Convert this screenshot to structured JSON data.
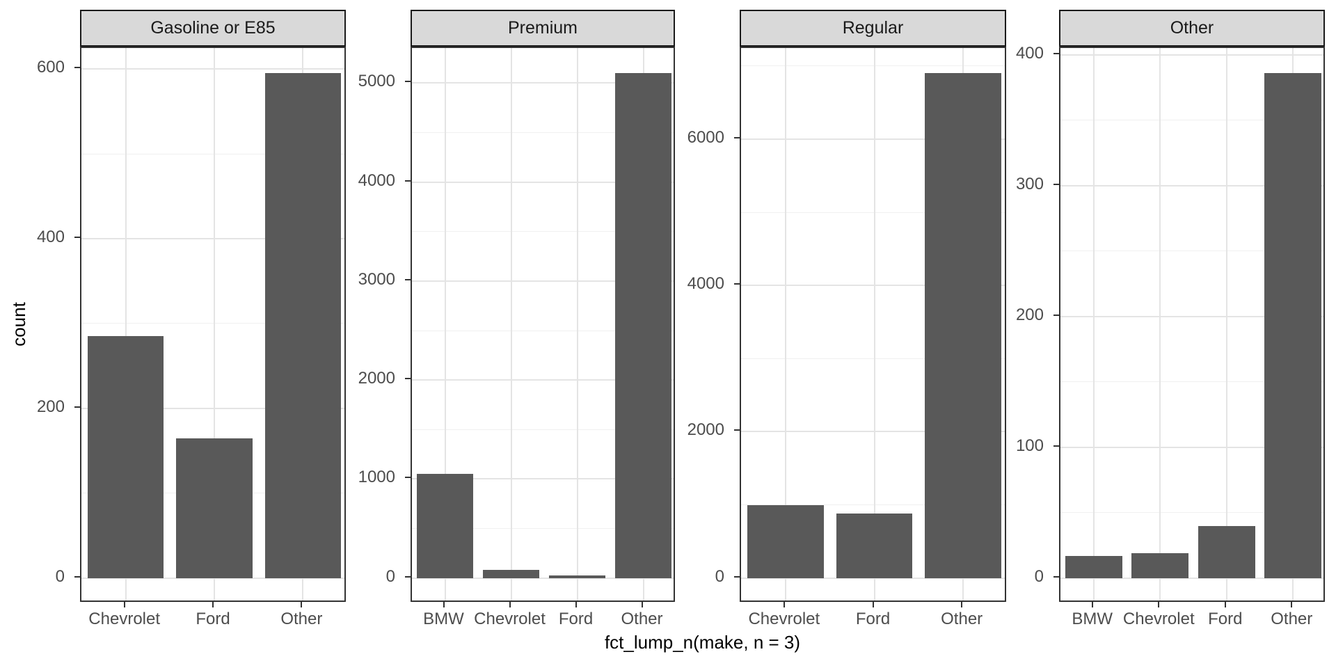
{
  "figure": {
    "y_axis_title": "count",
    "x_axis_title": "fct_lump_n(make, n = 3)"
  },
  "colors": {
    "bar_fill": "#595959",
    "strip_background": "#d9d9d9",
    "strip_border": "#1a1a1a",
    "panel_border": "#333333",
    "grid_major": "#e4e4e4",
    "grid_minor": "#f0f0f0",
    "tick_label": "#4d4d4d",
    "axis_title": "#000000",
    "background": "#ffffff"
  },
  "chart_data": {
    "type": "bar",
    "title": "",
    "xlabel": "fct_lump_n(make, n = 3)",
    "ylabel": "count",
    "grid": true,
    "legend": false,
    "facet_layout": "4 panels in one row, free y scales, strip labels on top",
    "facets": [
      {
        "label": "Gasoline or E85",
        "categories": [
          "Chevrolet",
          "Ford",
          "Other"
        ],
        "values": [
          285,
          165,
          595
        ],
        "y_ticks": [
          0,
          200,
          400,
          600
        ],
        "ylim_data": [
          0,
          625
        ]
      },
      {
        "label": "Premium",
        "categories": [
          "BMW",
          "Chevrolet",
          "Ford",
          "Other"
        ],
        "values": [
          1050,
          85,
          25,
          5100
        ],
        "y_ticks": [
          0,
          1000,
          2000,
          3000,
          4000,
          5000
        ],
        "ylim_data": [
          0,
          5355
        ]
      },
      {
        "label": "Regular",
        "categories": [
          "Chevrolet",
          "Ford",
          "Other"
        ],
        "values": [
          1000,
          880,
          6900
        ],
        "y_ticks": [
          0,
          2000,
          4000,
          6000
        ],
        "ylim_data": [
          0,
          7245
        ]
      },
      {
        "label": "Other",
        "categories": [
          "BMW",
          "Chevrolet",
          "Ford",
          "Other"
        ],
        "values": [
          17,
          19,
          40,
          386
        ],
        "y_ticks": [
          0,
          100,
          200,
          300,
          400
        ],
        "ylim_data": [
          0,
          405
        ]
      }
    ]
  }
}
